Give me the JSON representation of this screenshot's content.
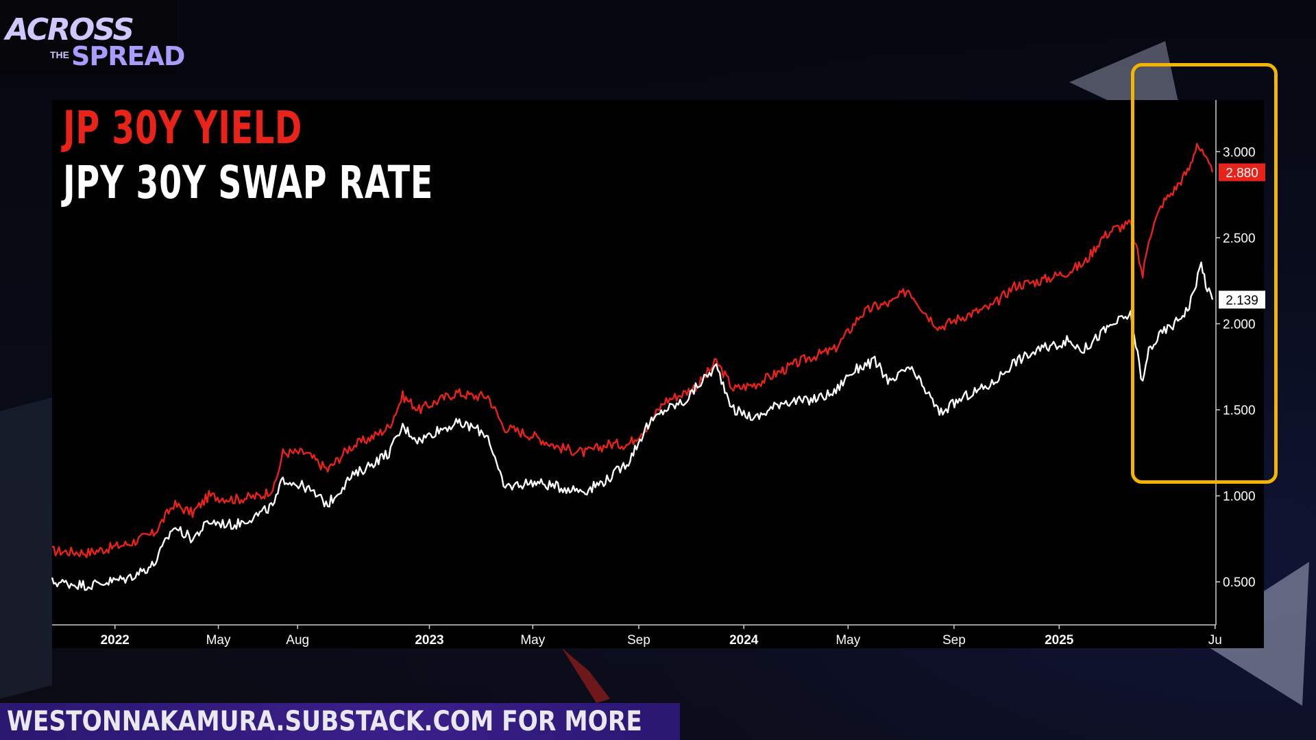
{
  "brand": {
    "across": "ACROSS",
    "the": "THE",
    "spread": "SPREAD"
  },
  "footer": {
    "text": "WESTONNAKAMURA.SUBSTACK.COM FOR MORE"
  },
  "colors": {
    "yield": "#e8231a",
    "swap": "#ffffff",
    "highlight": "#f4b400"
  },
  "chart_data": {
    "type": "line",
    "title": "JP 30Y YIELD",
    "subtitle": "JPY 30Y SWAP RATE",
    "ylim": [
      0.25,
      3.3
    ],
    "y_ticks": [
      {
        "value": 3.0,
        "label": "3.000"
      },
      {
        "value": 2.5,
        "label": "2.500"
      },
      {
        "value": 2.0,
        "label": "2.000"
      },
      {
        "value": 1.5,
        "label": "1.500"
      },
      {
        "value": 1.0,
        "label": "1.000"
      },
      {
        "value": 0.5,
        "label": "0.500"
      }
    ],
    "x_range": [
      "2021-10-20",
      "2025-07-02"
    ],
    "x_ticks": [
      {
        "date": "2022-01-01",
        "label": "2022",
        "bold": true
      },
      {
        "date": "2022-05-01",
        "label": "May",
        "bold": false
      },
      {
        "date": "2022-08-01",
        "label": "Aug",
        "bold": false
      },
      {
        "date": "2023-01-01",
        "label": "2023",
        "bold": true
      },
      {
        "date": "2023-05-01",
        "label": "May",
        "bold": false
      },
      {
        "date": "2023-09-01",
        "label": "Sep",
        "bold": false
      },
      {
        "date": "2024-01-01",
        "label": "2024",
        "bold": true
      },
      {
        "date": "2024-05-01",
        "label": "May",
        "bold": false
      },
      {
        "date": "2024-09-01",
        "label": "Sep",
        "bold": false
      },
      {
        "date": "2025-01-01",
        "label": "2025",
        "bold": true
      },
      {
        "date": "2025-07-01",
        "label": "Ju",
        "bold": false
      }
    ],
    "series": [
      {
        "name": "JP 30Y YIELD",
        "color": "#e8231a",
        "last_label": "2.880",
        "points": [
          [
            "2021-10-20",
            0.68
          ],
          [
            "2021-12-01",
            0.67
          ],
          [
            "2022-01-15",
            0.72
          ],
          [
            "2022-02-15",
            0.78
          ],
          [
            "2022-03-10",
            0.95
          ],
          [
            "2022-04-01",
            0.9
          ],
          [
            "2022-04-20",
            1.0
          ],
          [
            "2022-05-20",
            0.98
          ],
          [
            "2022-06-20",
            1.0
          ],
          [
            "2022-07-05",
            1.05
          ],
          [
            "2022-07-15",
            1.25
          ],
          [
            "2022-08-10",
            1.25
          ],
          [
            "2022-09-05",
            1.15
          ],
          [
            "2022-09-30",
            1.28
          ],
          [
            "2022-10-30",
            1.35
          ],
          [
            "2022-11-15",
            1.4
          ],
          [
            "2022-12-01",
            1.58
          ],
          [
            "2022-12-20",
            1.5
          ],
          [
            "2023-01-10",
            1.55
          ],
          [
            "2023-02-01",
            1.6
          ],
          [
            "2023-02-20",
            1.58
          ],
          [
            "2023-03-10",
            1.58
          ],
          [
            "2023-03-28",
            1.4
          ],
          [
            "2023-05-01",
            1.35
          ],
          [
            "2023-06-01",
            1.28
          ],
          [
            "2023-07-01",
            1.25
          ],
          [
            "2023-07-28",
            1.3
          ],
          [
            "2023-08-20",
            1.3
          ],
          [
            "2023-09-10",
            1.4
          ],
          [
            "2023-10-01",
            1.55
          ],
          [
            "2023-10-25",
            1.6
          ],
          [
            "2023-11-10",
            1.65
          ],
          [
            "2023-11-30",
            1.78
          ],
          [
            "2023-12-20",
            1.62
          ],
          [
            "2024-01-15",
            1.65
          ],
          [
            "2024-02-15",
            1.73
          ],
          [
            "2024-03-15",
            1.8
          ],
          [
            "2024-04-15",
            1.85
          ],
          [
            "2024-05-01",
            1.95
          ],
          [
            "2024-05-15",
            2.05
          ],
          [
            "2024-06-01",
            2.1
          ],
          [
            "2024-06-20",
            2.12
          ],
          [
            "2024-07-10",
            2.2
          ],
          [
            "2024-08-01",
            2.05
          ],
          [
            "2024-08-15",
            1.98
          ],
          [
            "2024-09-15",
            2.05
          ],
          [
            "2024-10-15",
            2.1
          ],
          [
            "2024-11-10",
            2.22
          ],
          [
            "2024-12-10",
            2.25
          ],
          [
            "2025-01-10",
            2.3
          ],
          [
            "2025-01-30",
            2.35
          ],
          [
            "2025-02-20",
            2.5
          ],
          [
            "2025-03-05",
            2.55
          ],
          [
            "2025-03-25",
            2.58
          ],
          [
            "2025-04-08",
            2.28
          ],
          [
            "2025-04-15",
            2.5
          ],
          [
            "2025-05-01",
            2.7
          ],
          [
            "2025-05-15",
            2.78
          ],
          [
            "2025-06-01",
            2.9
          ],
          [
            "2025-06-10",
            3.05
          ],
          [
            "2025-06-20",
            2.95
          ],
          [
            "2025-06-28",
            2.88
          ]
        ]
      },
      {
        "name": "JPY 30Y SWAP RATE",
        "color": "#ffffff",
        "last_label": "2.139",
        "points": [
          [
            "2021-10-20",
            0.5
          ],
          [
            "2021-12-01",
            0.48
          ],
          [
            "2022-01-15",
            0.52
          ],
          [
            "2022-02-15",
            0.6
          ],
          [
            "2022-03-10",
            0.82
          ],
          [
            "2022-04-01",
            0.75
          ],
          [
            "2022-04-20",
            0.85
          ],
          [
            "2022-05-20",
            0.83
          ],
          [
            "2022-06-20",
            0.9
          ],
          [
            "2022-07-05",
            0.95
          ],
          [
            "2022-07-15",
            1.1
          ],
          [
            "2022-08-10",
            1.05
          ],
          [
            "2022-09-05",
            0.95
          ],
          [
            "2022-09-30",
            1.1
          ],
          [
            "2022-10-30",
            1.2
          ],
          [
            "2022-11-15",
            1.25
          ],
          [
            "2022-12-01",
            1.4
          ],
          [
            "2022-12-20",
            1.32
          ],
          [
            "2023-01-10",
            1.38
          ],
          [
            "2023-02-01",
            1.42
          ],
          [
            "2023-02-20",
            1.4
          ],
          [
            "2023-03-10",
            1.35
          ],
          [
            "2023-03-28",
            1.05
          ],
          [
            "2023-05-01",
            1.08
          ],
          [
            "2023-06-01",
            1.05
          ],
          [
            "2023-07-01",
            1.03
          ],
          [
            "2023-07-28",
            1.1
          ],
          [
            "2023-08-20",
            1.2
          ],
          [
            "2023-09-10",
            1.4
          ],
          [
            "2023-10-01",
            1.5
          ],
          [
            "2023-10-25",
            1.55
          ],
          [
            "2023-11-10",
            1.65
          ],
          [
            "2023-11-30",
            1.75
          ],
          [
            "2023-12-20",
            1.5
          ],
          [
            "2024-01-15",
            1.45
          ],
          [
            "2024-02-15",
            1.55
          ],
          [
            "2024-03-15",
            1.55
          ],
          [
            "2024-04-15",
            1.6
          ],
          [
            "2024-05-01",
            1.7
          ],
          [
            "2024-05-15",
            1.75
          ],
          [
            "2024-06-01",
            1.78
          ],
          [
            "2024-06-20",
            1.65
          ],
          [
            "2024-07-10",
            1.75
          ],
          [
            "2024-08-01",
            1.6
          ],
          [
            "2024-08-15",
            1.48
          ],
          [
            "2024-09-15",
            1.58
          ],
          [
            "2024-10-15",
            1.65
          ],
          [
            "2024-11-10",
            1.78
          ],
          [
            "2024-12-10",
            1.85
          ],
          [
            "2025-01-10",
            1.9
          ],
          [
            "2025-01-30",
            1.85
          ],
          [
            "2025-02-20",
            1.95
          ],
          [
            "2025-03-05",
            2.0
          ],
          [
            "2025-03-25",
            2.05
          ],
          [
            "2025-04-08",
            1.65
          ],
          [
            "2025-04-15",
            1.85
          ],
          [
            "2025-05-01",
            1.95
          ],
          [
            "2025-05-15",
            2.0
          ],
          [
            "2025-06-01",
            2.1
          ],
          [
            "2025-06-15",
            2.35
          ],
          [
            "2025-06-22",
            2.2
          ],
          [
            "2025-06-28",
            2.14
          ]
        ]
      }
    ],
    "grid": false,
    "legend": "top-left"
  }
}
